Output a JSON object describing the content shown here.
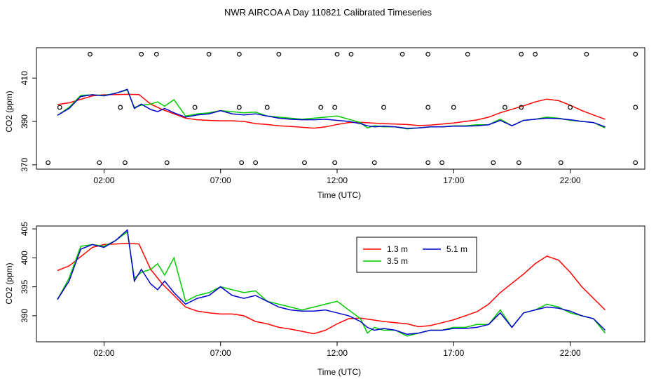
{
  "figure_title": "NWR AIRCOA A  Day 110821  Calibrated Timeseries",
  "chart_data": [
    {
      "type": "line",
      "panel": "top",
      "title": "NWR AIRCOA A  Day 110821  Calibrated Timeseries",
      "xlabel": "Time (UTC)",
      "ylabel": "CO2 (ppm)",
      "xlim": [
        -0.9,
        25.2
      ],
      "ylim": [
        368,
        424
      ],
      "x_ticks": [
        2,
        7,
        12,
        17,
        22
      ],
      "x_tick_labels": [
        "02:00",
        "07:00",
        "12:00",
        "17:00",
        "22:00"
      ],
      "y_ticks": [
        370,
        390,
        410
      ],
      "y_tick_labels": [
        "370",
        "390",
        "410"
      ],
      "series": [
        {
          "name": "1.3 m",
          "color": "#ff0000",
          "x": [
            0,
            0.5,
            1,
            1.5,
            2,
            2.5,
            3,
            3.5,
            4,
            4.5,
            5,
            5.5,
            6,
            6.5,
            7,
            7.5,
            8,
            8.5,
            9,
            9.5,
            10,
            10.5,
            11,
            11.5,
            12,
            12.5,
            13,
            13.5,
            14,
            14.5,
            15,
            15.5,
            16,
            16.5,
            17,
            17.5,
            18,
            18.5,
            19,
            19.5,
            20,
            20.5,
            21,
            21.5,
            22,
            22.5,
            23,
            23.5
          ],
          "values": [
            397.8,
            398.6,
            400.2,
            401.8,
            402.3,
            402.4,
            402.5,
            402.4,
            398.0,
            395.5,
            393.5,
            391.5,
            390.8,
            390.5,
            390.3,
            390.3,
            390.0,
            389.0,
            388.6,
            388.0,
            387.7,
            387.3,
            386.9,
            387.5,
            388.6,
            389.5,
            389.6,
            389.3,
            389.0,
            388.8,
            388.6,
            388.1,
            388.3,
            388.8,
            389.3,
            390.0,
            390.7,
            392.0,
            394.0,
            395.6,
            397.2,
            399.0,
            400.3,
            399.6,
            397.5,
            395.0,
            393.0,
            391.0
          ]
        },
        {
          "name": "3.5 m",
          "color": "#00cc00",
          "x": [
            0,
            0.5,
            1,
            1.5,
            2,
            2.5,
            3,
            3.3,
            3.6,
            4,
            4.3,
            4.6,
            5,
            5.5,
            6,
            6.5,
            7,
            7.5,
            8,
            8.5,
            9,
            9.5,
            10,
            10.5,
            11,
            11.5,
            12,
            12.5,
            13,
            13.3,
            13.6,
            14,
            14.5,
            15,
            15.5,
            16,
            16.5,
            17,
            17.5,
            18,
            18.5,
            19,
            19.5,
            20,
            20.5,
            21,
            21.5,
            22,
            22.5,
            23,
            23.5
          ],
          "values": [
            392.8,
            396.5,
            402.0,
            402.3,
            402.0,
            403.0,
            404.5,
            396.5,
            397.5,
            398.0,
            399.0,
            397.0,
            400.0,
            392.5,
            393.5,
            394.0,
            395.0,
            394.5,
            394.0,
            394.3,
            392.5,
            392.0,
            391.5,
            391.0,
            391.5,
            392.0,
            392.5,
            391.0,
            389.5,
            387.0,
            388.0,
            387.5,
            387.5,
            386.5,
            387.0,
            387.5,
            387.5,
            388.0,
            388.0,
            388.5,
            388.5,
            391.0,
            388.0,
            390.5,
            391.0,
            392.0,
            391.5,
            390.5,
            390.0,
            389.5,
            387.0
          ]
        },
        {
          "name": "5.1 m",
          "color": "#0000cc",
          "x": [
            0,
            0.5,
            1,
            1.5,
            2,
            2.5,
            3,
            3.3,
            3.6,
            4,
            4.3,
            4.6,
            5,
            5.5,
            6,
            6.5,
            7,
            7.5,
            8,
            8.5,
            9,
            9.5,
            10,
            10.5,
            11,
            11.5,
            12,
            12.5,
            13,
            13.3,
            13.6,
            14,
            14.5,
            15,
            15.5,
            16,
            16.5,
            17,
            17.5,
            18,
            18.5,
            19,
            19.5,
            20,
            20.5,
            21,
            21.5,
            22,
            22.5,
            23,
            23.5
          ],
          "values": [
            392.8,
            396.0,
            401.5,
            402.3,
            401.8,
            403.0,
            404.8,
            396.0,
            398.0,
            395.5,
            394.5,
            396.0,
            394.0,
            392.0,
            393.0,
            393.5,
            395.0,
            393.5,
            393.0,
            393.5,
            392.5,
            391.5,
            391.0,
            390.8,
            390.8,
            391.0,
            390.5,
            390.0,
            389.0,
            388.0,
            387.5,
            387.8,
            387.5,
            386.8,
            387.0,
            387.5,
            387.5,
            387.8,
            387.8,
            388.0,
            388.5,
            390.5,
            388.0,
            390.5,
            391.0,
            391.5,
            391.3,
            390.8,
            390.0,
            389.5,
            387.5
          ]
        }
      ],
      "markers": {
        "symbol": "open-circle",
        "y_levels": [
          371,
          396.5,
          421
        ],
        "upper_x": [
          1.4,
          3.6,
          4.25,
          6.5,
          7.8,
          9.5,
          12,
          12.6,
          14.8,
          15.9,
          17.6,
          19.9,
          20.5,
          22.7,
          24.8
        ],
        "middle_x": [
          0.1,
          2.7,
          5.9,
          7.8,
          9.0,
          11.3,
          11.9,
          14.0,
          15.9,
          17.0,
          19.2,
          19.9,
          22.0,
          24.8
        ],
        "lower_x": [
          -0.4,
          1.8,
          2.9,
          4.7,
          7.9,
          8.5,
          10.6,
          11.9,
          13.6,
          15.9,
          16.5,
          18.7,
          19.8,
          21.6,
          24.8
        ]
      }
    },
    {
      "type": "line",
      "panel": "bottom",
      "xlabel": "Time (UTC)",
      "ylabel": "CO2 (ppm)",
      "xlim": [
        -0.9,
        25.2
      ],
      "ylim": [
        385.5,
        405.5
      ],
      "x_ticks": [
        2,
        7,
        12,
        17,
        22
      ],
      "x_tick_labels": [
        "02:00",
        "07:00",
        "12:00",
        "17:00",
        "22:00"
      ],
      "y_ticks": [
        390,
        395,
        400,
        405
      ],
      "y_tick_labels": [
        "390",
        "395",
        "400",
        "405"
      ],
      "legend": {
        "position": "top-center",
        "entries": [
          "1.3 m",
          "5.1 m",
          "3.5 m"
        ]
      },
      "series_ref": "same three series as top panel"
    }
  ]
}
